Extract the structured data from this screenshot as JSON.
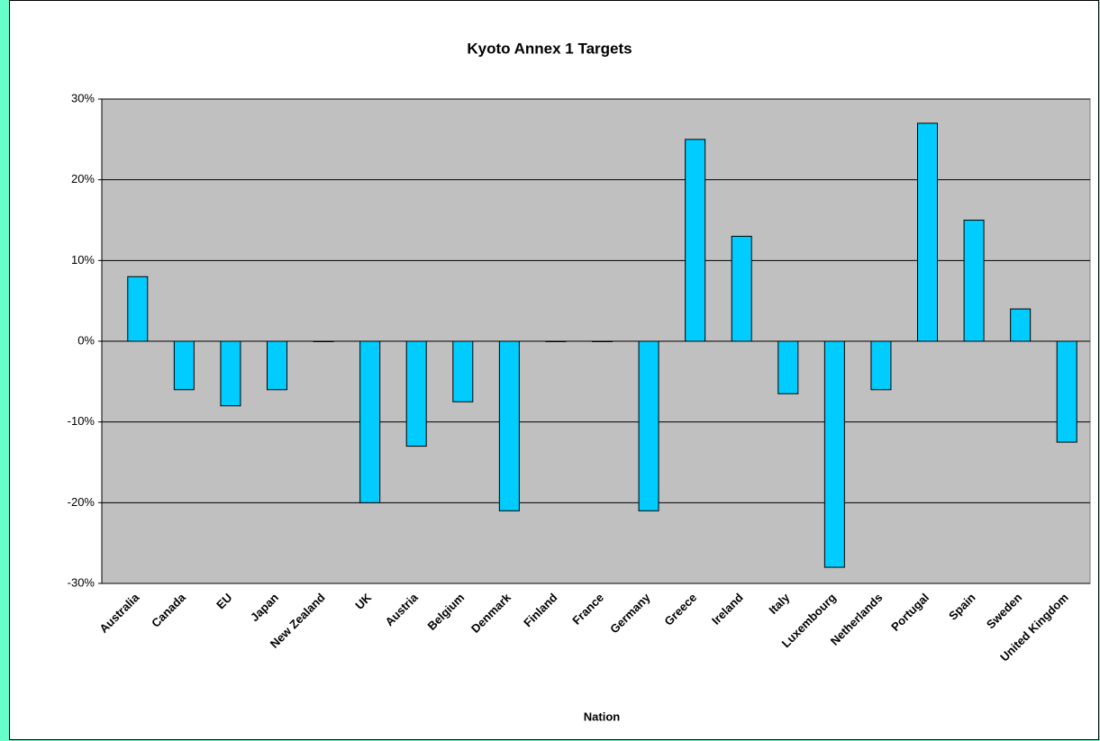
{
  "chart_data": {
    "type": "bar",
    "title": "Kyoto Annex 1 Targets",
    "x_label": "Nation",
    "categories": [
      "Australia",
      "Canada",
      "EU",
      "Japan",
      "New Zealand",
      "UK",
      "Austria",
      "Belgium",
      "Denmark",
      "Finland",
      "France",
      "Germany",
      "Greece",
      "Ireland",
      "Italy",
      "Luxembourg",
      "Netherlands",
      "Portugal",
      "Spain",
      "Sweden",
      "United Kingdom"
    ],
    "values": [
      8,
      -6,
      -8,
      -6,
      0,
      -20,
      -13,
      -7.5,
      -21,
      0,
      0,
      -21,
      25,
      13,
      -6.5,
      -28,
      -6,
      27,
      15,
      4,
      -12.5
    ],
    "color": "#00ccff",
    "ylim": [
      -30,
      30
    ],
    "yticks": [
      {
        "value": -30,
        "label": "-30%"
      },
      {
        "value": -20,
        "label": "-20%"
      },
      {
        "value": -10,
        "label": "-10%"
      },
      {
        "value": 0,
        "label": "0%"
      },
      {
        "value": 10,
        "label": "10%"
      },
      {
        "value": 20,
        "label": "20%"
      },
      {
        "value": 30,
        "label": "30%"
      }
    ],
    "grid": true
  }
}
